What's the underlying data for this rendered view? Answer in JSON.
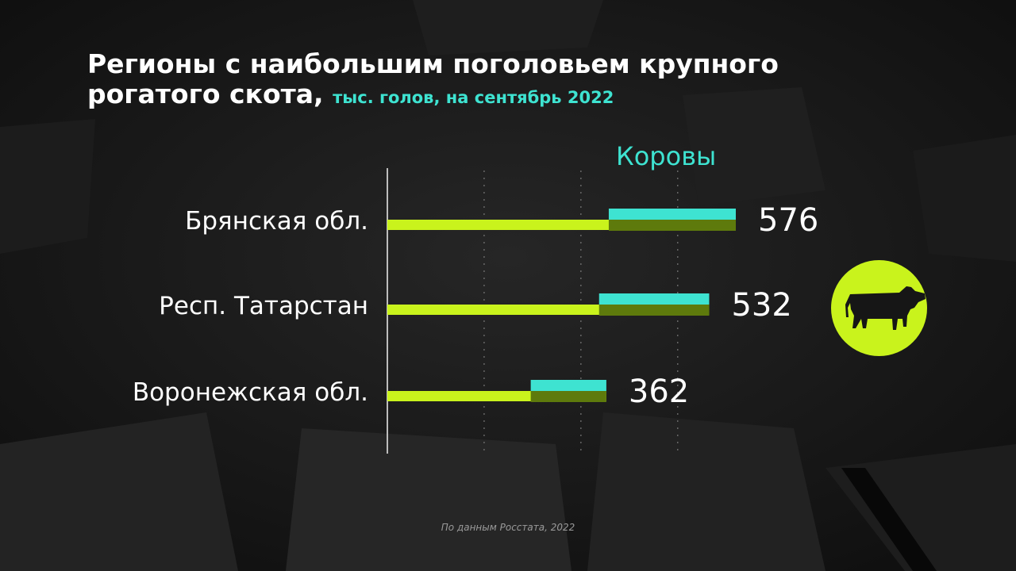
{
  "title": {
    "line1": "Регионы с наибольшим поголовьем крупного",
    "line2": "рогатого скота,",
    "subtitle": "тыс. голов, на сентябрь 2022"
  },
  "icon": {
    "name": "cow-icon"
  },
  "source": "По данным Росстата, 2022",
  "colors": {
    "bar": "#c9f31c",
    "cows_top": "#3ee3d1",
    "cows_bottom": "#5e7a0c",
    "axis": "#bdbdbd",
    "grid": "#8a8a8a"
  },
  "chart_data": {
    "type": "bar",
    "orientation": "horizontal",
    "categories": [
      "Брянская обл.",
      "Респ. Татарстан",
      "Воронежская обл."
    ],
    "series": [
      {
        "name": "",
        "values": [
          576,
          532,
          362
        ]
      },
      {
        "name": "Коровы",
        "values": [
          210,
          182,
          125
        ]
      }
    ],
    "data_labels": [
      "576",
      "532",
      "362"
    ],
    "legend": "Коровы",
    "xlim": [
      0,
      630
    ],
    "grid": true
  }
}
